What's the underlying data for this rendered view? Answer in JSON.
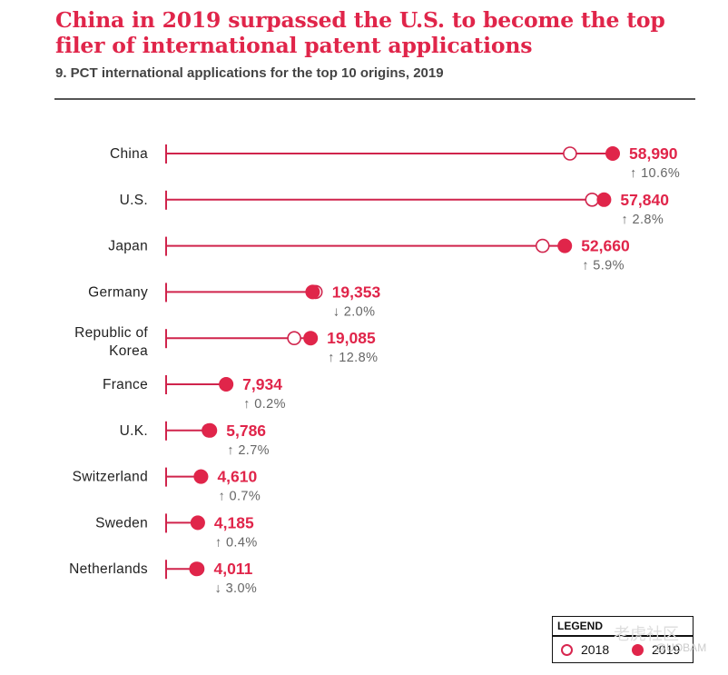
{
  "header": {
    "title": "China in 2019 surpassed the U.S. to become the top filer of international patent applications",
    "subtitle": "9. PCT international applications for the top 10 origins, 2019"
  },
  "colors": {
    "accent": "#e0254a",
    "line": "#d0244c",
    "label": "#222222",
    "change": "#666666"
  },
  "legend": {
    "title": "LEGEND",
    "items": [
      {
        "label": "2018",
        "style": "open-circle"
      },
      {
        "label": "2019",
        "style": "filled-circle"
      }
    ]
  },
  "watermark": {
    "text": "老虎社区",
    "handle": "@UOBAM"
  },
  "chart_data": {
    "type": "dot-range",
    "title": "China in 2019 surpassed the U.S. to become the top filer of international patent applications",
    "subtitle": "9. PCT international applications for the top 10 origins, 2019",
    "xlim": [
      0,
      58990
    ],
    "grid": false,
    "legend_position": "bottom-right",
    "series_names": [
      "2018",
      "2019"
    ],
    "rows": [
      {
        "label": "China",
        "value_2019": 58990,
        "value_2018": 53345,
        "value_label": "58,990",
        "change_dir": "up",
        "change": "10.6%"
      },
      {
        "label": "U.S.",
        "value_2019": 57840,
        "value_2018": 56265,
        "value_label": "57,840",
        "change_dir": "up",
        "change": "2.8%"
      },
      {
        "label": "Japan",
        "value_2019": 52660,
        "value_2018": 49726,
        "value_label": "52,660",
        "change_dir": "up",
        "change": "5.9%"
      },
      {
        "label": "Germany",
        "value_2019": 19353,
        "value_2018": 19748,
        "value_label": "19,353",
        "change_dir": "down",
        "change": "2.0%"
      },
      {
        "label": "Republic of Korea",
        "label_lines": [
          "Republic of",
          "Korea"
        ],
        "value_2019": 19085,
        "value_2018": 16920,
        "value_label": "19,085",
        "change_dir": "up",
        "change": "12.8%"
      },
      {
        "label": "France",
        "value_2019": 7934,
        "value_2018": 7918,
        "value_label": "7,934",
        "change_dir": "up",
        "change": "0.2%"
      },
      {
        "label": "U.K.",
        "value_2019": 5786,
        "value_2018": 5634,
        "value_label": "5,786",
        "change_dir": "up",
        "change": "2.7%"
      },
      {
        "label": "Switzerland",
        "value_2019": 4610,
        "value_2018": 4578,
        "value_label": "4,610",
        "change_dir": "up",
        "change": "0.7%"
      },
      {
        "label": "Sweden",
        "value_2019": 4185,
        "value_2018": 4168,
        "value_label": "4,185",
        "change_dir": "up",
        "change": "0.4%"
      },
      {
        "label": "Netherlands",
        "value_2019": 4011,
        "value_2018": 4135,
        "value_label": "4,011",
        "change_dir": "down",
        "change": "3.0%"
      }
    ]
  }
}
